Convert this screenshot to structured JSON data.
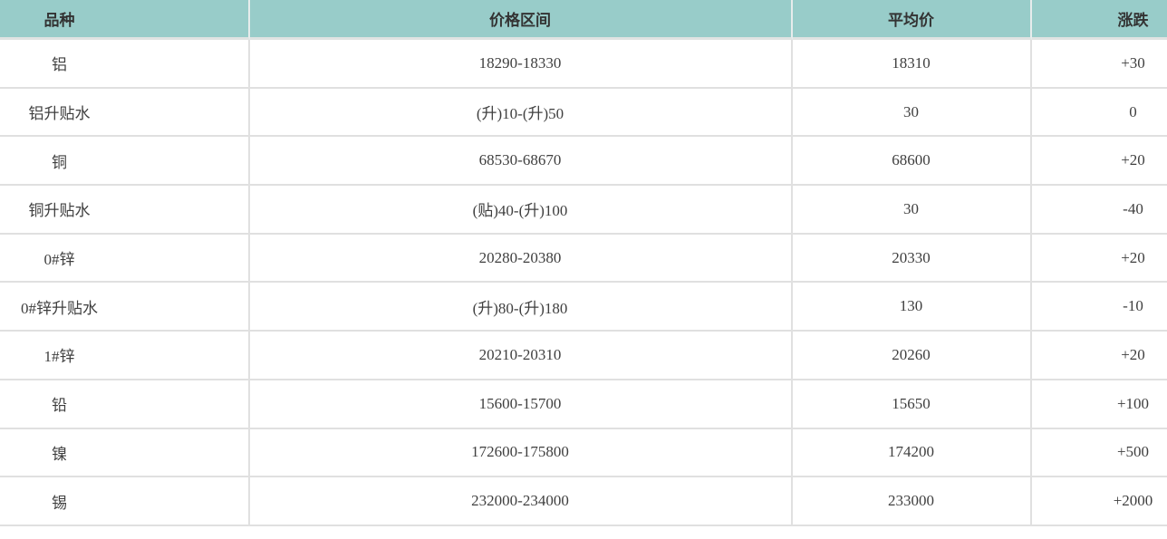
{
  "chart_data": {
    "type": "table",
    "title": "",
    "columns": [
      "品种",
      "价格区间",
      "平均价",
      "涨跌"
    ],
    "rows": [
      [
        "铝",
        "18290-18330",
        "18310",
        "+30"
      ],
      [
        "铝升贴水",
        "(升)10-(升)50",
        "30",
        "0"
      ],
      [
        "铜",
        "68530-68670",
        "68600",
        "+20"
      ],
      [
        "铜升贴水",
        "(贴)40-(升)100",
        "30",
        "-40"
      ],
      [
        "0#锌",
        "20280-20380",
        "20330",
        "+20"
      ],
      [
        "0#锌升贴水",
        "(升)80-(升)180",
        "130",
        "-10"
      ],
      [
        "1#锌",
        "20210-20310",
        "20260",
        "+20"
      ],
      [
        "铅",
        "15600-15700",
        "15650",
        "+100"
      ],
      [
        "镍",
        "172600-175800",
        "174200",
        "+500"
      ],
      [
        "锡",
        "232000-234000",
        "233000",
        "+2000"
      ]
    ]
  },
  "colors": {
    "header_bg": "#98ccc9",
    "header_text": "#333333",
    "header_separator": "#e7ecec",
    "header_bottom_band": "#dfe3e2",
    "grid_line": "#e0e0e0",
    "text": "#3f3f3f",
    "row_bg": "#ffffff"
  }
}
